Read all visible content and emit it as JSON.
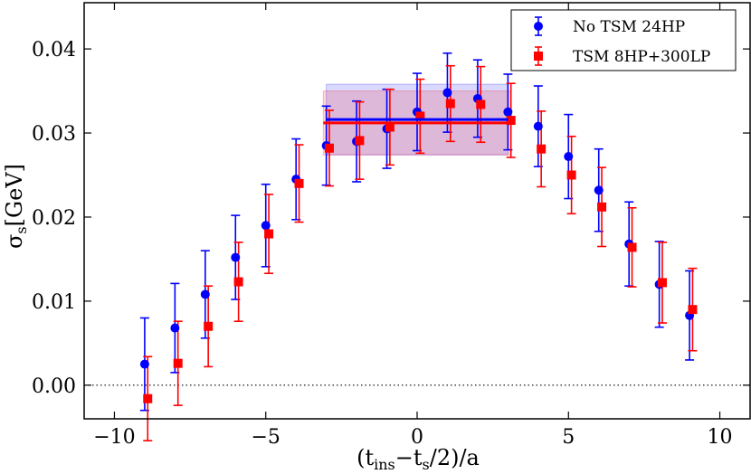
{
  "chart_data": {
    "type": "scatter",
    "title": "",
    "xlabel": "(t_ins − t_s/2)/a",
    "ylabel": "σ_s [GeV]",
    "xlim": [
      -11,
      11
    ],
    "ylim": [
      -0.004,
      0.0455
    ],
    "xticks": [
      -10,
      -5,
      0,
      5,
      10
    ],
    "xtick_labels": [
      "−10",
      "−5",
      "0",
      "5",
      "10"
    ],
    "yticks": [
      0.0,
      0.01,
      0.02,
      0.03,
      0.04
    ],
    "ytick_labels": [
      "0.00",
      "0.01",
      "0.02",
      "0.03",
      "0.04"
    ],
    "zero_line": true,
    "legend_position": "top-right",
    "series": [
      {
        "name": "No TSM 24HP",
        "color": "#0000ff",
        "marker": "circle",
        "x": [
          -9,
          -8,
          -7,
          -6,
          -5,
          -4,
          -3,
          -2,
          -1,
          0,
          1,
          2,
          3,
          4,
          5,
          6,
          7,
          8,
          9
        ],
        "y": [
          0.0025,
          0.0068,
          0.0108,
          0.0152,
          0.019,
          0.0245,
          0.0285,
          0.029,
          0.0305,
          0.0325,
          0.0348,
          0.0341,
          0.0325,
          0.0308,
          0.0272,
          0.0232,
          0.0168,
          0.012,
          0.0083
        ],
        "err": [
          0.0055,
          0.0053,
          0.0052,
          0.005,
          0.0049,
          0.0048,
          0.0047,
          0.0048,
          0.0047,
          0.0046,
          0.0047,
          0.0046,
          0.0045,
          0.0048,
          0.005,
          0.0049,
          0.005,
          0.0051,
          0.0053
        ],
        "fit": {
          "x_start": -3,
          "x_end": 3,
          "value": 0.0316,
          "err": 0.0042
        }
      },
      {
        "name": "TSM 8HP+300LP",
        "color": "#ff0000",
        "marker": "square",
        "x": [
          -8.9,
          -7.9,
          -6.9,
          -5.9,
          -4.9,
          -3.9,
          -2.9,
          -1.9,
          -0.9,
          0.1,
          1.1,
          2.1,
          3.1,
          4.1,
          5.1,
          6.1,
          7.1,
          8.1,
          9.1
        ],
        "y": [
          -0.0016,
          0.0026,
          0.007,
          0.0123,
          0.018,
          0.024,
          0.0282,
          0.0291,
          0.0307,
          0.032,
          0.0335,
          0.0334,
          0.0315,
          0.0281,
          0.025,
          0.0212,
          0.0164,
          0.0122,
          0.009
        ],
        "err": [
          0.005,
          0.005,
          0.0048,
          0.0047,
          0.0047,
          0.0046,
          0.0045,
          0.0046,
          0.0045,
          0.0044,
          0.0045,
          0.0045,
          0.0044,
          0.0045,
          0.0046,
          0.0047,
          0.0047,
          0.0048,
          0.0049
        ],
        "fit": {
          "x_start": -3.1,
          "x_end": 3.1,
          "value": 0.0312,
          "err": 0.0038
        }
      }
    ]
  }
}
